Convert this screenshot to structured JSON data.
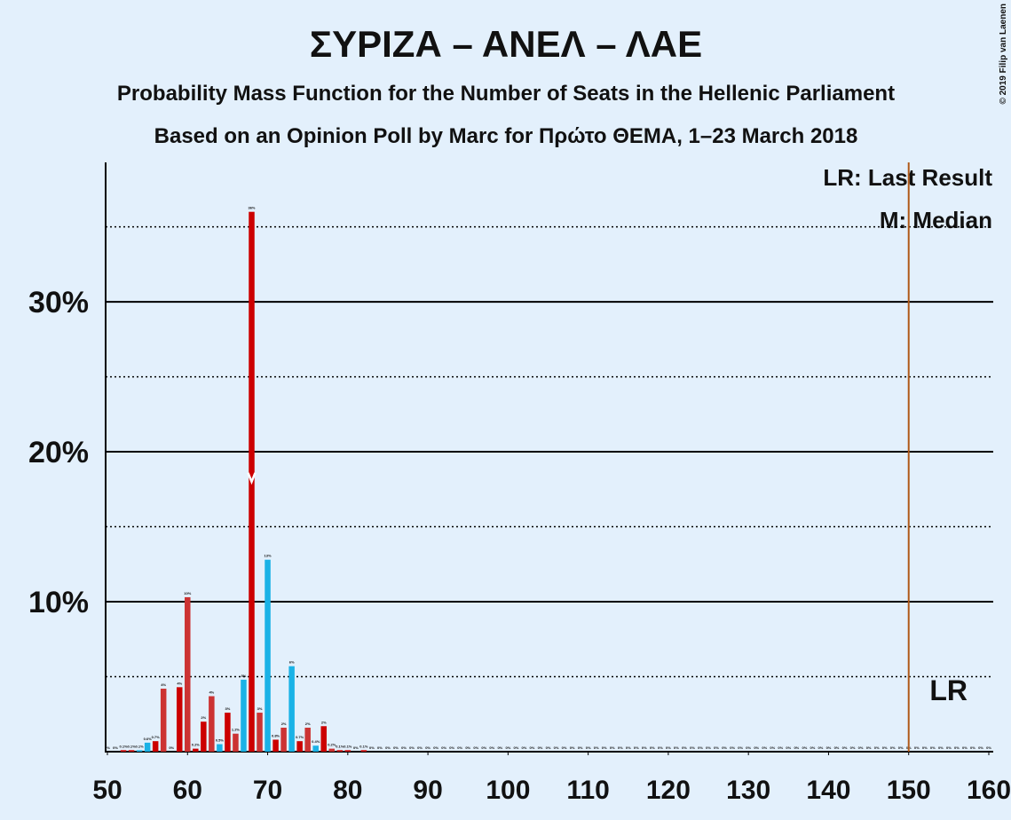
{
  "chart_data": {
    "type": "bar",
    "title": "ΣΥΡΙΖΑ – ΑΝΕΛ – ΛΑΕ",
    "subtitle": "Probability Mass Function for the Number of Seats in the Hellenic Parliament",
    "subtitle2": "Based on an Opinion Poll by Marc for Πρώτο ΘΕΜΑ, 1–23 March 2018",
    "copyright": "© 2019 Filip van Laenen",
    "legend": [
      "LR: Last Result",
      "M: Median"
    ],
    "last_result_label": "LR",
    "median": 68,
    "last_result": 150,
    "x": [
      50,
      51,
      52,
      53,
      54,
      55,
      56,
      57,
      58,
      59,
      60,
      61,
      62,
      63,
      64,
      65,
      66,
      67,
      68,
      69,
      70,
      71,
      72,
      73,
      74,
      75,
      76,
      77,
      78,
      79,
      80,
      81,
      82,
      83,
      84,
      85,
      86,
      87,
      88,
      89,
      90,
      91,
      92,
      93,
      94,
      95,
      96,
      97,
      98,
      99,
      100,
      101,
      102,
      103,
      104,
      105,
      106,
      107,
      108,
      109,
      110,
      111,
      112,
      113,
      114,
      115,
      116,
      117,
      118,
      119,
      120,
      121,
      122,
      123,
      124,
      125,
      126,
      127,
      128,
      129,
      130,
      131,
      132,
      133,
      134,
      135,
      136,
      137,
      138,
      139,
      140,
      141,
      142,
      143,
      144,
      145,
      146,
      147,
      148,
      149,
      150,
      151,
      152,
      153,
      154,
      155,
      156,
      157,
      158,
      159,
      160
    ],
    "values": [
      0,
      0,
      0.1,
      0.1,
      0.1,
      0.6,
      0.7,
      4.2,
      0,
      4.3,
      10.3,
      0.2,
      2,
      3.7,
      0.5,
      2.6,
      1.2,
      4.8,
      36,
      2.6,
      12.8,
      0.8,
      1.6,
      5.7,
      0.7,
      1.6,
      0.4,
      1.7,
      0.2,
      0.1,
      0.1,
      0,
      0.1,
      0,
      0,
      0,
      0,
      0,
      0,
      0,
      0,
      0,
      0,
      0,
      0,
      0,
      0,
      0,
      0,
      0,
      0,
      0,
      0,
      0,
      0,
      0,
      0,
      0,
      0,
      0,
      0,
      0,
      0,
      0,
      0,
      0,
      0,
      0,
      0,
      0,
      0,
      0,
      0,
      0,
      0,
      0,
      0,
      0,
      0,
      0,
      0,
      0,
      0,
      0,
      0,
      0,
      0,
      0,
      0,
      0,
      0,
      0,
      0,
      0,
      0,
      0,
      0,
      0,
      0,
      0,
      0,
      0,
      0,
      0,
      0,
      0,
      0,
      0,
      0,
      0,
      0
    ],
    "value_labels": [
      "0%",
      "0%",
      "0.1%",
      "0.1%",
      "0.1%",
      "0.6%",
      "0.7%",
      "4%",
      "0%",
      "4%",
      "10%",
      "0.2%",
      "2%",
      "4%",
      "0.5%",
      "3%",
      "1.2%",
      "5%",
      "36%",
      "3%",
      "13%",
      "0.8%",
      "2%",
      "6%",
      "0.7%",
      "2%",
      "0.4%",
      "2%",
      "0.2%",
      "0.1%",
      "0.1%",
      "0%",
      "0.1%",
      "0%",
      "0%",
      "0%",
      "0%",
      "0%",
      "0%",
      "0%",
      "0%",
      "0%",
      "0%",
      "0%",
      "0%",
      "0%",
      "0%",
      "0%",
      "0%",
      "0%",
      "0%",
      "0%",
      "0%",
      "0%",
      "0%",
      "0%",
      "0%",
      "0%",
      "0%",
      "0%",
      "0%",
      "0%",
      "0%",
      "0%",
      "0%",
      "0%",
      "0%",
      "0%",
      "0%",
      "0%",
      "0%",
      "0%",
      "0%",
      "0%",
      "0%",
      "0%",
      "0%",
      "0%",
      "0%",
      "0%",
      "0%",
      "0%",
      "0%",
      "0%",
      "0%",
      "0%",
      "0%",
      "0%",
      "0%",
      "0%",
      "0%",
      "0%",
      "0%",
      "0%",
      "0%",
      "0%",
      "0%",
      "0%",
      "0%",
      "0%",
      "0%",
      "0%",
      "0%",
      "0%",
      "0%",
      "0%",
      "0%",
      "0%",
      "0%",
      "0%",
      "0%"
    ],
    "colors": [
      "#cc0000",
      "#cc0000",
      "#cc0000",
      "#cc0000",
      "#1ab2e6",
      "#1ab2e6",
      "#cc0000",
      "#cc3333",
      "#cc0000",
      "#cc0000",
      "#cc3333",
      "#cc0000",
      "#cc0000",
      "#cc3333",
      "#1ab2e6",
      "#cc0000",
      "#cc3333",
      "#1ab2e6",
      "#cc0000",
      "#cc3333",
      "#1ab2e6",
      "#cc0000",
      "#cc3333",
      "#1ab2e6",
      "#cc0000",
      "#cc3333",
      "#1ab2e6",
      "#cc0000",
      "#cc3333",
      "#cc0000",
      "#cc0000",
      "#cc0000",
      "#cc0000",
      "#cc0000",
      "#cc0000",
      "#cc0000",
      "#cc0000",
      "#cc0000",
      "#cc0000",
      "#cc0000",
      "#cc0000",
      "#cc0000",
      "#cc0000",
      "#cc0000",
      "#cc0000",
      "#cc0000",
      "#cc0000",
      "#cc0000",
      "#cc0000",
      "#cc0000",
      "#cc0000",
      "#cc0000",
      "#cc0000",
      "#cc0000",
      "#cc0000",
      "#cc0000",
      "#cc0000",
      "#cc0000",
      "#cc0000",
      "#cc0000",
      "#cc0000",
      "#cc0000",
      "#cc0000",
      "#cc0000",
      "#cc0000",
      "#cc0000",
      "#cc0000",
      "#cc0000",
      "#cc0000",
      "#cc0000",
      "#cc0000",
      "#cc0000",
      "#cc0000",
      "#cc0000",
      "#cc0000",
      "#cc0000",
      "#cc0000",
      "#cc0000",
      "#cc0000",
      "#cc0000",
      "#cc0000",
      "#cc0000",
      "#cc0000",
      "#cc0000",
      "#cc0000",
      "#cc0000",
      "#cc0000",
      "#cc0000",
      "#cc0000",
      "#cc0000",
      "#cc0000",
      "#cc0000",
      "#cc0000",
      "#cc0000",
      "#cc0000",
      "#cc0000",
      "#cc0000",
      "#cc0000",
      "#cc0000",
      "#cc0000",
      "#cc0000",
      "#cc0000",
      "#cc0000",
      "#cc0000",
      "#cc0000",
      "#cc0000",
      "#cc0000",
      "#cc0000",
      "#cc0000"
    ],
    "last_result_color": "#b05a1a",
    "xlim": [
      50,
      160
    ],
    "xticks": [
      50,
      60,
      70,
      80,
      90,
      100,
      110,
      120,
      130,
      140,
      150,
      160
    ],
    "ylim": [
      0,
      39
    ],
    "yticks": [
      {
        "value": 10,
        "label": "10%"
      },
      {
        "value": 20,
        "label": "20%"
      },
      {
        "value": 30,
        "label": "30%"
      }
    ],
    "minor_yticks": [
      5,
      15,
      25,
      35
    ],
    "grid": true
  }
}
